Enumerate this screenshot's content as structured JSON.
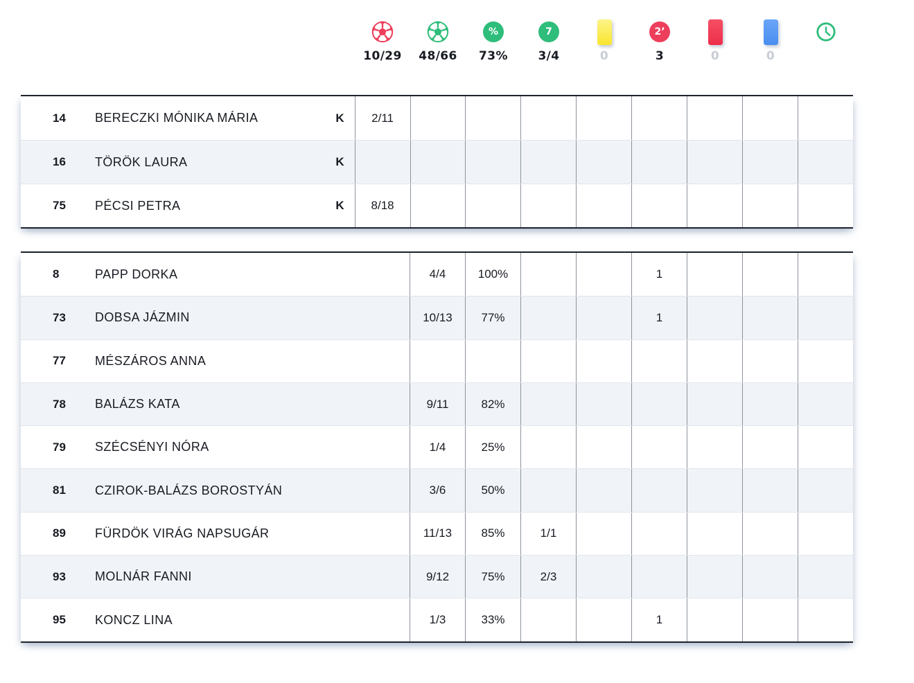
{
  "colors": {
    "red": "#ed3e5b",
    "green": "#2ebd7b",
    "yellow_card_top": "#fdf488",
    "yellow_card_bottom": "#f9e52e",
    "red_card_top": "#f55064",
    "red_card_bottom": "#ee2d4a",
    "blue_card_top": "#6aa6f7",
    "blue_card_bottom": "#4a8ef0",
    "muted_value": "#c8cdd5",
    "dark_text": "#181b22",
    "stripe": "#f0f4f8",
    "grid_vertical": "#8d939c",
    "grid_horizontal": "#e2e6ec",
    "table_border": "#1c212b"
  },
  "summary": {
    "columns": [
      {
        "icon": "red-ball-icon",
        "icon_text": "",
        "value": "10/29",
        "muted": false
      },
      {
        "icon": "green-ball-icon",
        "icon_text": "",
        "value": "48/66",
        "muted": false
      },
      {
        "icon": "percent-icon",
        "icon_text": "%",
        "value": "73%",
        "muted": false
      },
      {
        "icon": "seven-meter-icon",
        "icon_text": "7",
        "value": "3/4",
        "muted": false
      },
      {
        "icon": "yellow-card-icon",
        "icon_text": "",
        "value": "0",
        "muted": true
      },
      {
        "icon": "two-minute-icon",
        "icon_text": "2’",
        "value": "3",
        "muted": false
      },
      {
        "icon": "red-card-icon",
        "icon_text": "",
        "value": "0",
        "muted": true
      },
      {
        "icon": "blue-card-icon",
        "icon_text": "",
        "value": "0",
        "muted": true
      },
      {
        "icon": "clock-icon",
        "icon_text": "",
        "value": "",
        "muted": false
      }
    ]
  },
  "goalkeeper_table": {
    "rows": [
      {
        "number": "14",
        "name": "BERECZKI MÓNIKA MÁRIA",
        "position": "K",
        "stats": [
          "2/11",
          "",
          "",
          "",
          "",
          "",
          "",
          "",
          ""
        ]
      },
      {
        "number": "16",
        "name": "TÖRÖK LAURA",
        "position": "K",
        "stats": [
          "",
          "",
          "",
          "",
          "",
          "",
          "",
          "",
          ""
        ]
      },
      {
        "number": "75",
        "name": "PÉCSI PETRA",
        "position": "K",
        "stats": [
          "8/18",
          "",
          "",
          "",
          "",
          "",
          "",
          "",
          ""
        ]
      }
    ]
  },
  "player_table": {
    "rows": [
      {
        "number": "8",
        "name": "PAPP DORKA",
        "stats": [
          "4/4",
          "100%",
          "",
          "",
          "1",
          "",
          "",
          ""
        ]
      },
      {
        "number": "73",
        "name": "DOBSA JÁZMIN",
        "stats": [
          "10/13",
          "77%",
          "",
          "",
          "1",
          "",
          "",
          ""
        ]
      },
      {
        "number": "77",
        "name": "MÉSZÁROS ANNA",
        "stats": [
          "",
          "",
          "",
          "",
          "",
          "",
          "",
          ""
        ]
      },
      {
        "number": "78",
        "name": "BALÁZS KATA",
        "stats": [
          "9/11",
          "82%",
          "",
          "",
          "",
          "",
          "",
          ""
        ]
      },
      {
        "number": "79",
        "name": "SZÉCSÉNYI NÓRA",
        "stats": [
          "1/4",
          "25%",
          "",
          "",
          "",
          "",
          "",
          ""
        ]
      },
      {
        "number": "81",
        "name": "CZIROK-BALÁZS BOROSTYÁN",
        "stats": [
          "3/6",
          "50%",
          "",
          "",
          "",
          "",
          "",
          ""
        ]
      },
      {
        "number": "89",
        "name": "FÜRDÖK VIRÁG NAPSUGÁR",
        "stats": [
          "11/13",
          "85%",
          "1/1",
          "",
          "",
          "",
          "",
          ""
        ]
      },
      {
        "number": "93",
        "name": "MOLNÁR FANNI",
        "stats": [
          "9/12",
          "75%",
          "2/3",
          "",
          "",
          "",
          "",
          ""
        ]
      },
      {
        "number": "95",
        "name": "KONCZ LINA",
        "stats": [
          "1/3",
          "33%",
          "",
          "",
          "1",
          "",
          "",
          ""
        ]
      }
    ]
  }
}
